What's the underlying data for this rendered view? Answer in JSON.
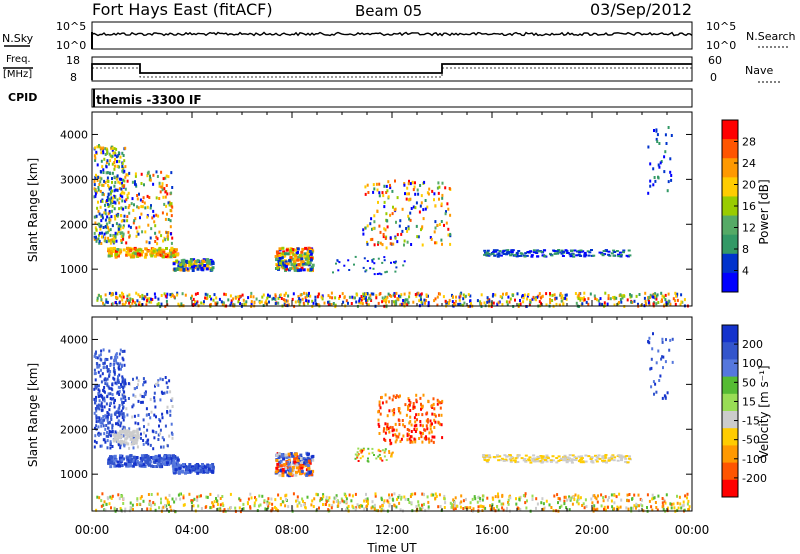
{
  "header": {
    "station": "Fort Hays East (fitACF)",
    "beam": "Beam 05",
    "date": "03/Sep/2012"
  },
  "panels": {
    "sky": {
      "left_label": "N.Sky",
      "right_label": "N.Search",
      "ticks": [
        "10^5",
        "10^0"
      ]
    },
    "freq": {
      "left_label_1": "Freq.",
      "left_label_2": "[MHz]",
      "left_ticks": [
        "18",
        "8"
      ],
      "right_label": "Nave",
      "right_ticks": [
        "60",
        "0"
      ]
    },
    "cpid": {
      "label": "CPID",
      "mode_text": "themis -3300 IF"
    }
  },
  "chart_data": [
    {
      "type": "heatmap",
      "name_bar": "Power",
      "ylabel": "Slant Range [km]",
      "colorbar_label": "Power [dB]",
      "colorbar_ticks": [
        "28",
        "24",
        "20",
        "16",
        "12",
        "8",
        "4"
      ],
      "colorbar_colors": [
        "#ff0000",
        "#ff5500",
        "#ff9900",
        "#ffcc00",
        "#99cc00",
        "#55aa66",
        "#339966",
        "#0033cc",
        "#0000ff"
      ],
      "y_ticks": [
        "4000",
        "3000",
        "2000",
        "1000"
      ],
      "ylim": [
        180,
        4500
      ],
      "xlim_hours": [
        0,
        24
      ]
    },
    {
      "type": "heatmap",
      "name_bar": "Velocity",
      "ylabel": "Slant Range [km]",
      "colorbar_label": "Velocity [m s⁻¹]",
      "colorbar_ticks": [
        "200",
        "100",
        "50",
        "15",
        "-15",
        "-50",
        "-100",
        "-200"
      ],
      "colorbar_colors": [
        "#1533cc",
        "#3355cc",
        "#5577dd",
        "#55bb33",
        "#99dd55",
        "#cccccc",
        "#ffcc00",
        "#ff9900",
        "#ff5500",
        "#ff0000"
      ],
      "y_ticks": [
        "4000",
        "3000",
        "2000",
        "1000"
      ],
      "ylim": [
        180,
        4500
      ],
      "xlim_hours": [
        0,
        24
      ]
    }
  ],
  "x_axis": {
    "ticks": [
      "00:00",
      "04:00",
      "08:00",
      "12:00",
      "16:00",
      "20:00",
      "00:00"
    ],
    "label": "Time UT"
  }
}
